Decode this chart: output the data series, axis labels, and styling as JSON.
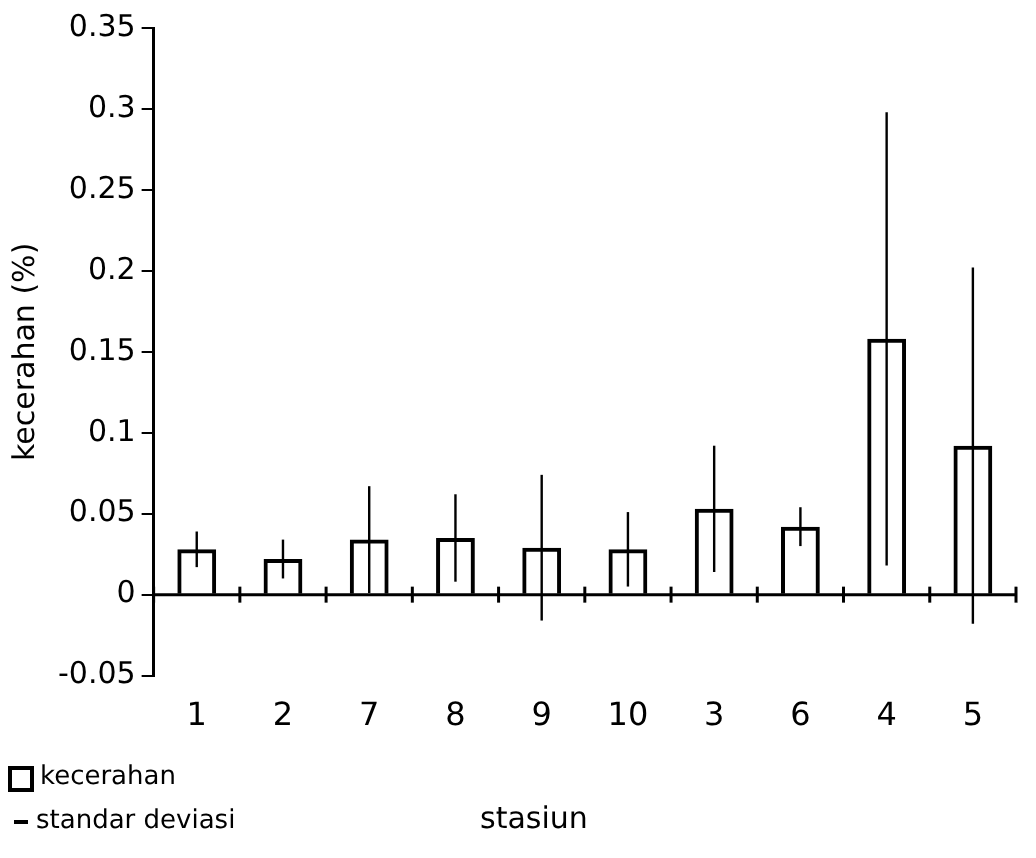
{
  "chart_data": {
    "type": "bar",
    "xlabel": "stasiun",
    "ylabel": "kecerahan (%)",
    "categories": [
      "1",
      "2",
      "7",
      "8",
      "9",
      "10",
      "3",
      "6",
      "4",
      "5"
    ],
    "series": [
      {
        "name": "kecerahan",
        "color": "#000000",
        "values": [
          0.028,
          0.022,
          0.034,
          0.035,
          0.029,
          0.028,
          0.053,
          0.042,
          0.158,
          0.092
        ],
        "errors": [
          0.011,
          0.012,
          0.033,
          0.027,
          0.045,
          0.023,
          0.039,
          0.012,
          0.14,
          0.11
        ]
      }
    ],
    "ylim": [
      -0.05,
      0.35
    ],
    "yticks": [
      -0.05,
      0,
      0.05,
      0.1,
      0.15,
      0.2,
      0.25,
      0.3,
      0.35
    ],
    "ref_lines": [
      {
        "axis": "y",
        "value": 0,
        "color": "#000000"
      }
    ],
    "annotations": [
      "standar deviasi"
    ],
    "legend": "bottom left",
    "grid": false
  }
}
